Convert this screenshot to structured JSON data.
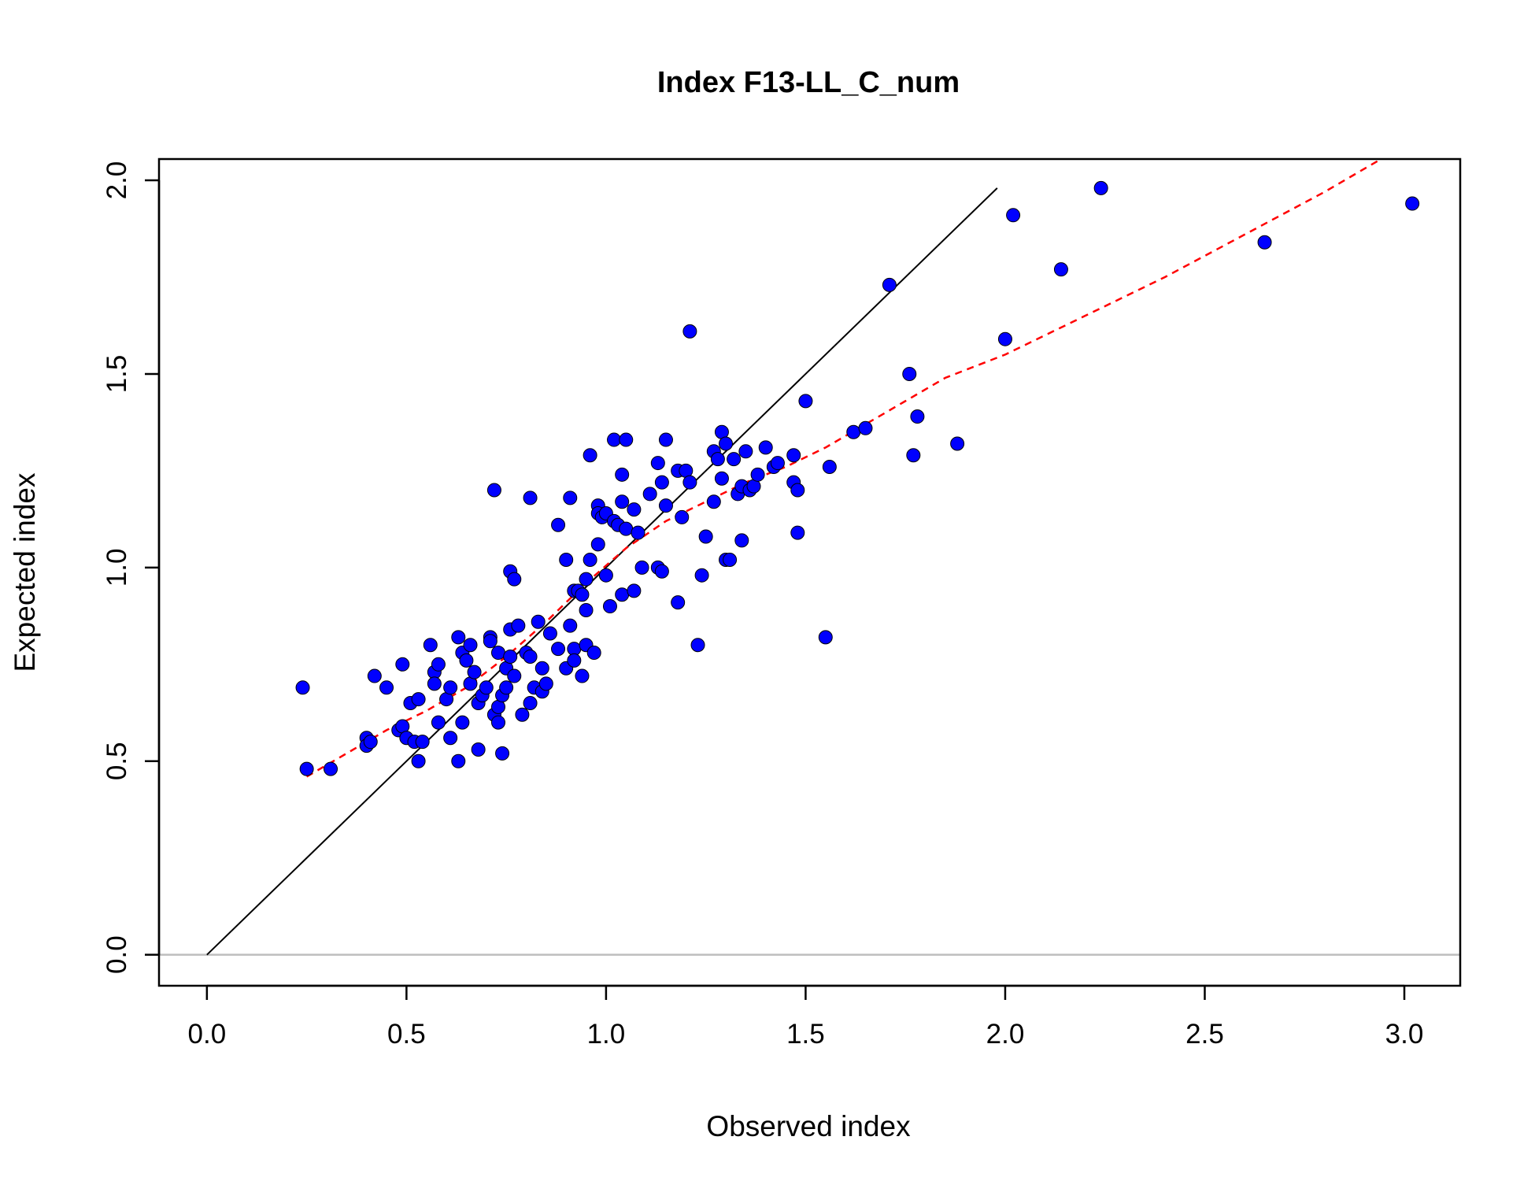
{
  "chart_data": {
    "type": "scatter",
    "title": "Index F13-LL_C_num",
    "xlabel": "Observed index",
    "ylabel": "Expected index",
    "xlim": [
      -0.12,
      3.14
    ],
    "ylim": [
      -0.08,
      2.055
    ],
    "x_ticks": [
      0.0,
      0.5,
      1.0,
      1.5,
      2.0,
      2.5,
      3.0
    ],
    "x_tick_labels": [
      "0.0",
      "0.5",
      "1.0",
      "1.5",
      "2.0",
      "2.5",
      "3.0"
    ],
    "y_ticks": [
      0.0,
      0.5,
      1.0,
      1.5,
      2.0
    ],
    "y_tick_labels": [
      "0.0",
      "0.5",
      "1.0",
      "1.5",
      "2.0"
    ],
    "grid": false,
    "colors": {
      "points": "#0000ff",
      "point_outline": "#000000",
      "identity_line": "#000000",
      "smoother": "#ff0000",
      "zero_line": "#bebebe"
    },
    "series": [
      {
        "type": "scatter",
        "points": [
          [
            0.24,
            0.69
          ],
          [
            0.25,
            0.48
          ],
          [
            0.31,
            0.48
          ],
          [
            0.4,
            0.56
          ],
          [
            0.4,
            0.54
          ],
          [
            0.41,
            0.55
          ],
          [
            0.42,
            0.72
          ],
          [
            0.45,
            0.69
          ],
          [
            0.48,
            0.58
          ],
          [
            0.49,
            0.75
          ],
          [
            0.49,
            0.59
          ],
          [
            0.5,
            0.56
          ],
          [
            0.51,
            0.65
          ],
          [
            0.52,
            0.55
          ],
          [
            0.53,
            0.66
          ],
          [
            0.53,
            0.5
          ],
          [
            0.54,
            0.55
          ],
          [
            0.56,
            0.8
          ],
          [
            0.57,
            0.73
          ],
          [
            0.57,
            0.7
          ],
          [
            0.58,
            0.75
          ],
          [
            0.58,
            0.6
          ],
          [
            0.6,
            0.66
          ],
          [
            0.61,
            0.56
          ],
          [
            0.61,
            0.69
          ],
          [
            0.63,
            0.82
          ],
          [
            0.63,
            0.5
          ],
          [
            0.64,
            0.78
          ],
          [
            0.64,
            0.6
          ],
          [
            0.65,
            0.76
          ],
          [
            0.66,
            0.7
          ],
          [
            0.66,
            0.8
          ],
          [
            0.67,
            0.73
          ],
          [
            0.68,
            0.65
          ],
          [
            0.68,
            0.53
          ],
          [
            0.69,
            0.67
          ],
          [
            0.7,
            0.69
          ],
          [
            0.71,
            0.82
          ],
          [
            0.71,
            0.81
          ],
          [
            0.72,
            1.2
          ],
          [
            0.72,
            0.62
          ],
          [
            0.73,
            0.6
          ],
          [
            0.73,
            0.64
          ],
          [
            0.73,
            0.78
          ],
          [
            0.74,
            0.52
          ],
          [
            0.74,
            0.67
          ],
          [
            0.75,
            0.69
          ],
          [
            0.75,
            0.74
          ],
          [
            0.76,
            0.99
          ],
          [
            0.76,
            0.77
          ],
          [
            0.76,
            0.84
          ],
          [
            0.77,
            0.97
          ],
          [
            0.77,
            0.72
          ],
          [
            0.78,
            0.85
          ],
          [
            0.79,
            0.62
          ],
          [
            0.8,
            0.78
          ],
          [
            0.81,
            1.18
          ],
          [
            0.81,
            0.77
          ],
          [
            0.81,
            0.65
          ],
          [
            0.82,
            0.69
          ],
          [
            0.83,
            0.86
          ],
          [
            0.84,
            0.74
          ],
          [
            0.84,
            0.68
          ],
          [
            0.85,
            0.7
          ],
          [
            0.86,
            0.83
          ],
          [
            0.88,
            1.11
          ],
          [
            0.88,
            0.79
          ],
          [
            0.9,
            1.02
          ],
          [
            0.9,
            0.74
          ],
          [
            0.91,
            0.85
          ],
          [
            0.91,
            1.18
          ],
          [
            0.92,
            0.94
          ],
          [
            0.92,
            0.79
          ],
          [
            0.92,
            0.76
          ],
          [
            0.93,
            0.94
          ],
          [
            0.94,
            0.93
          ],
          [
            0.94,
            0.72
          ],
          [
            0.95,
            0.89
          ],
          [
            0.95,
            0.97
          ],
          [
            0.95,
            0.8
          ],
          [
            0.96,
            1.29
          ],
          [
            0.96,
            1.02
          ],
          [
            0.97,
            0.78
          ],
          [
            0.98,
            1.16
          ],
          [
            0.98,
            1.14
          ],
          [
            0.98,
            1.06
          ],
          [
            0.99,
            1.13
          ],
          [
            1.0,
            0.98
          ],
          [
            1.0,
            1.14
          ],
          [
            1.01,
            0.9
          ],
          [
            1.02,
            1.33
          ],
          [
            1.02,
            1.12
          ],
          [
            1.03,
            1.11
          ],
          [
            1.04,
            1.24
          ],
          [
            1.04,
            1.17
          ],
          [
            1.04,
            0.93
          ],
          [
            1.05,
            1.33
          ],
          [
            1.05,
            1.1
          ],
          [
            1.07,
            0.94
          ],
          [
            1.07,
            1.15
          ],
          [
            1.08,
            1.09
          ],
          [
            1.09,
            1.0
          ],
          [
            1.11,
            1.19
          ],
          [
            1.13,
            1.27
          ],
          [
            1.13,
            1.0
          ],
          [
            1.14,
            0.99
          ],
          [
            1.14,
            1.22
          ],
          [
            1.15,
            1.33
          ],
          [
            1.15,
            1.16
          ],
          [
            1.18,
            1.25
          ],
          [
            1.18,
            0.91
          ],
          [
            1.19,
            1.13
          ],
          [
            1.2,
            1.25
          ],
          [
            1.21,
            1.22
          ],
          [
            1.21,
            1.61
          ],
          [
            1.23,
            0.8
          ],
          [
            1.24,
            0.98
          ],
          [
            1.25,
            1.08
          ],
          [
            1.27,
            1.3
          ],
          [
            1.27,
            1.17
          ],
          [
            1.28,
            1.28
          ],
          [
            1.29,
            1.35
          ],
          [
            1.29,
            1.23
          ],
          [
            1.3,
            1.32
          ],
          [
            1.3,
            1.02
          ],
          [
            1.31,
            1.02
          ],
          [
            1.32,
            1.28
          ],
          [
            1.33,
            1.19
          ],
          [
            1.34,
            1.07
          ],
          [
            1.34,
            1.21
          ],
          [
            1.35,
            1.3
          ],
          [
            1.36,
            1.2
          ],
          [
            1.37,
            1.21
          ],
          [
            1.38,
            1.24
          ],
          [
            1.4,
            1.31
          ],
          [
            1.42,
            1.26
          ],
          [
            1.43,
            1.27
          ],
          [
            1.47,
            1.22
          ],
          [
            1.47,
            1.29
          ],
          [
            1.48,
            1.09
          ],
          [
            1.48,
            1.2
          ],
          [
            1.5,
            1.43
          ],
          [
            1.55,
            0.82
          ],
          [
            1.56,
            1.26
          ],
          [
            1.62,
            1.35
          ],
          [
            1.65,
            1.36
          ],
          [
            1.71,
            1.73
          ],
          [
            1.76,
            1.5
          ],
          [
            1.77,
            1.29
          ],
          [
            1.78,
            1.39
          ],
          [
            1.88,
            1.32
          ],
          [
            2.0,
            1.59
          ],
          [
            2.02,
            1.91
          ],
          [
            2.14,
            1.77
          ],
          [
            2.24,
            1.98
          ],
          [
            2.65,
            1.84
          ],
          [
            3.02,
            1.94
          ]
        ]
      },
      {
        "type": "line",
        "style": "solid",
        "points": [
          [
            0.0,
            0.0
          ],
          [
            1.98,
            1.98
          ]
        ]
      },
      {
        "type": "line",
        "style": "dashed",
        "points": [
          [
            0.25,
            0.46
          ],
          [
            0.35,
            0.52
          ],
          [
            0.45,
            0.58
          ],
          [
            0.55,
            0.63
          ],
          [
            0.65,
            0.69
          ],
          [
            0.75,
            0.77
          ],
          [
            0.85,
            0.86
          ],
          [
            0.95,
            0.96
          ],
          [
            1.05,
            1.05
          ],
          [
            1.15,
            1.12
          ],
          [
            1.25,
            1.17
          ],
          [
            1.35,
            1.22
          ],
          [
            1.45,
            1.26
          ],
          [
            1.55,
            1.31
          ],
          [
            1.65,
            1.37
          ],
          [
            1.75,
            1.43
          ],
          [
            1.85,
            1.49
          ],
          [
            2.0,
            1.55
          ],
          [
            2.2,
            1.65
          ],
          [
            2.4,
            1.75
          ],
          [
            2.6,
            1.86
          ],
          [
            2.8,
            1.97
          ],
          [
            2.95,
            2.06
          ]
        ]
      },
      {
        "type": "hline",
        "y": 0.0
      }
    ]
  }
}
